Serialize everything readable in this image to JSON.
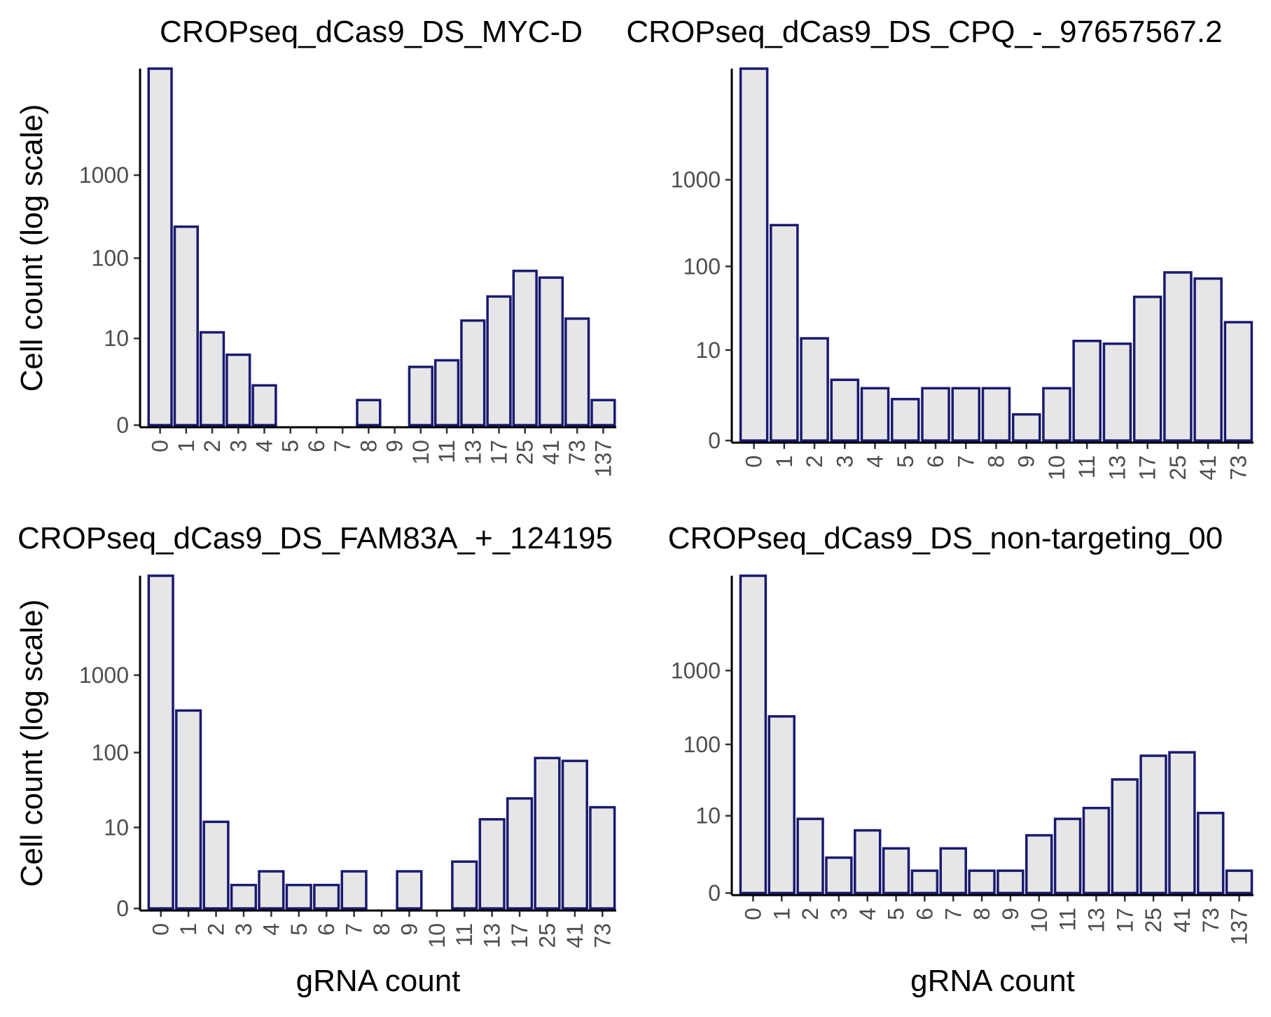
{
  "chart_data": [
    {
      "type": "bar",
      "title": "CROPseq_dCas9_DS_MYC-D",
      "xlabel": "",
      "ylabel": "Cell count (log scale)",
      "yscale": "log",
      "yticks": [
        0,
        10,
        100,
        1000
      ],
      "categories": [
        "0",
        "1",
        "2",
        "3",
        "4",
        "5",
        "6",
        "7",
        "8",
        "9",
        "10",
        "11",
        "13",
        "17",
        "25",
        "41",
        "73",
        "137"
      ],
      "values": [
        19000,
        240,
        12,
        6,
        2,
        0,
        0,
        0,
        1,
        0,
        4,
        5,
        17,
        34,
        70,
        58,
        18,
        1
      ],
      "fill": "#e6e6e6",
      "outline": "#1a1a6e"
    },
    {
      "type": "bar",
      "title": "CROPseq_dCas9_DS_CPQ_-_97657567.2",
      "xlabel": "",
      "ylabel": "",
      "yscale": "log",
      "yticks": [
        0,
        10,
        100,
        1000
      ],
      "categories": [
        "0",
        "1",
        "2",
        "3",
        "4",
        "5",
        "6",
        "7",
        "8",
        "9",
        "10",
        "11",
        "13",
        "17",
        "25",
        "41",
        "73"
      ],
      "values": [
        19000,
        300,
        14,
        4,
        3,
        2,
        3,
        3,
        3,
        1,
        3,
        13,
        12,
        44,
        85,
        72,
        22
      ],
      "fill": "#e6e6e6",
      "outline": "#1a1a6e"
    },
    {
      "type": "bar",
      "title": "CROPseq_dCas9_DS_FAM83A_+_124195",
      "xlabel": "gRNA count",
      "ylabel": "Cell count (log scale)",
      "yscale": "log",
      "yticks": [
        0,
        10,
        100,
        1000
      ],
      "categories": [
        "0",
        "1",
        "2",
        "3",
        "4",
        "5",
        "6",
        "7",
        "8",
        "9",
        "10",
        "11",
        "13",
        "17",
        "25",
        "41",
        "73"
      ],
      "values": [
        19000,
        350,
        12,
        1,
        2,
        1,
        1,
        2,
        0,
        2,
        0,
        3,
        13,
        25,
        85,
        78,
        19
      ],
      "fill": "#e6e6e6",
      "outline": "#1a1a6e"
    },
    {
      "type": "bar",
      "title": "CROPseq_dCas9_DS_non-targeting_00",
      "xlabel": "gRNA count",
      "ylabel": "",
      "yscale": "log",
      "yticks": [
        0,
        10,
        100,
        1000
      ],
      "categories": [
        "0",
        "1",
        "2",
        "3",
        "4",
        "5",
        "6",
        "7",
        "8",
        "9",
        "10",
        "11",
        "13",
        "17",
        "25",
        "41",
        "73",
        "137"
      ],
      "values": [
        19000,
        240,
        9,
        2,
        6,
        3,
        1,
        3,
        1,
        1,
        5,
        9,
        13,
        33,
        70,
        78,
        11,
        1
      ],
      "fill": "#e6e6e6",
      "outline": "#1a1a6e"
    }
  ]
}
